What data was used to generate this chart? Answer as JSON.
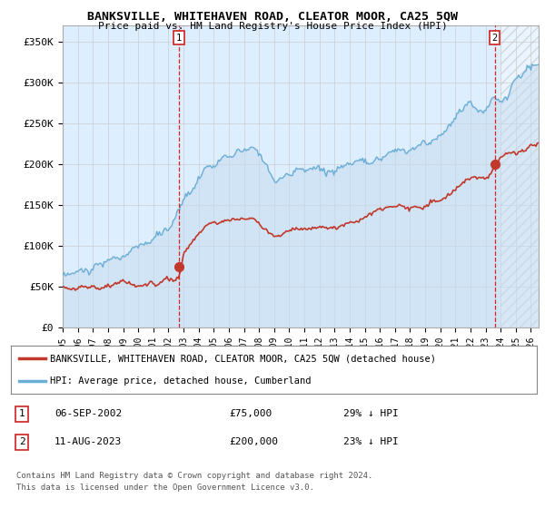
{
  "title": "BANKSVILLE, WHITEHAVEN ROAD, CLEATOR MOOR, CA25 5QW",
  "subtitle": "Price paid vs. HM Land Registry's House Price Index (HPI)",
  "ylabel_ticks": [
    "£0",
    "£50K",
    "£100K",
    "£150K",
    "£200K",
    "£250K",
    "£300K",
    "£350K"
  ],
  "ytick_values": [
    0,
    50000,
    100000,
    150000,
    200000,
    250000,
    300000,
    350000
  ],
  "ylim": [
    0,
    370000
  ],
  "xlim_start": 1995,
  "xlim_end": 2026.5,
  "xticks": [
    1995,
    1996,
    1997,
    1998,
    1999,
    2000,
    2001,
    2002,
    2003,
    2004,
    2005,
    2006,
    2007,
    2008,
    2009,
    2010,
    2011,
    2012,
    2013,
    2014,
    2015,
    2016,
    2017,
    2018,
    2019,
    2020,
    2021,
    2022,
    2023,
    2024,
    2025,
    2026
  ],
  "hpi_color": "#6baed6",
  "hpi_fill_color": "#c6dbef",
  "price_color": "#c0392b",
  "sale1_x": 2002.7,
  "sale1_y": 75000,
  "sale1_label": "1",
  "sale1_date": "06-SEP-2002",
  "sale1_price": "£75,000",
  "sale1_pct": "29% ↓ HPI",
  "sale2_x": 2023.6,
  "sale2_y": 200000,
  "sale2_label": "2",
  "sale2_date": "11-AUG-2023",
  "sale2_price": "£200,000",
  "sale2_pct": "23% ↓ HPI",
  "legend_label1": "BANKSVILLE, WHITEHAVEN ROAD, CLEATOR MOOR, CA25 5QW (detached house)",
  "legend_label2": "HPI: Average price, detached house, Cumberland",
  "footnote1": "Contains HM Land Registry data © Crown copyright and database right 2024.",
  "footnote2": "This data is licensed under the Open Government Licence v3.0.",
  "vline1_x": 2002.7,
  "vline2_x": 2023.6,
  "background_color": "#ffffff",
  "grid_color": "#cccccc",
  "plot_bg": "#ddeeff"
}
